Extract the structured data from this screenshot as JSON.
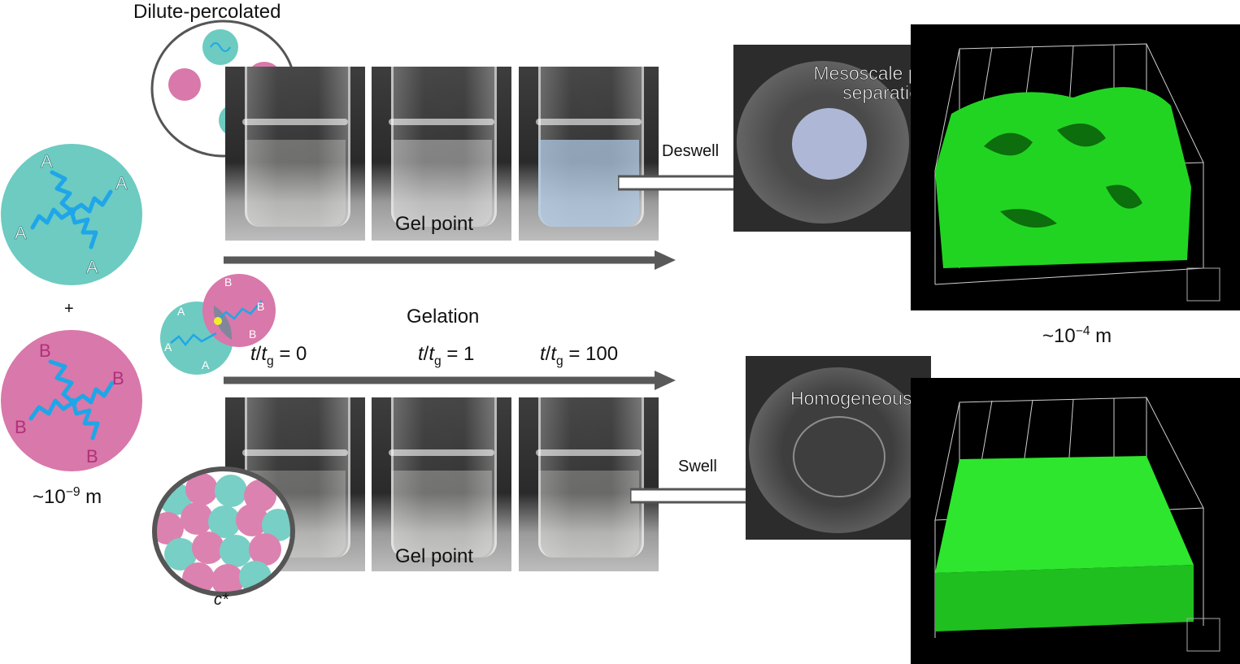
{
  "labels": {
    "dilute_percolated": "Dilute-percolated",
    "plus": "+",
    "scale_nm": "~10",
    "scale_nm_exp": "−9",
    "scale_nm_unit": " m",
    "scale_um": "~10",
    "scale_um_exp": "−4",
    "scale_um_unit": " m",
    "gelation": "Gelation",
    "gel_point_top": "Gel point",
    "gel_point_bottom": "Gel point",
    "deswell": "Deswell",
    "swell": "Swell",
    "mesoscale": "Mesoscale phase separation",
    "homogeneous": "Homogeneous gel",
    "c_star": "c*",
    "time_t": "t",
    "time_tg": "t",
    "time_g_sub": "g",
    "time_0": " = 0",
    "time_1": " = 1",
    "time_100": " = 100",
    "slash": "/"
  },
  "polymer_letters": {
    "a": "A",
    "b": "B"
  },
  "colors": {
    "teal": "#6dcbc1",
    "pink": "#d978aa",
    "chain": "#1fa6e8",
    "arrow": "#595959",
    "gel_green": "#22e022"
  }
}
